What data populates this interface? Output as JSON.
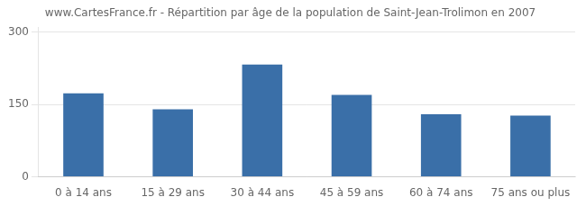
{
  "chart_data": {
    "type": "bar",
    "title": "www.CartesFrance.fr - Répartition par âge de la population de Saint-Jean-Trolimon en 2007",
    "categories": [
      "0 à 14 ans",
      "15 à 29 ans",
      "30 à 44 ans",
      "45 à 59 ans",
      "60 à 74 ans",
      "75 ans ou plus"
    ],
    "values": [
      173,
      140,
      233,
      170,
      130,
      127
    ],
    "color": "#3a6fa8",
    "ylim": [
      0,
      310
    ],
    "yticks": [
      0,
      150,
      300
    ],
    "grid": true
  }
}
